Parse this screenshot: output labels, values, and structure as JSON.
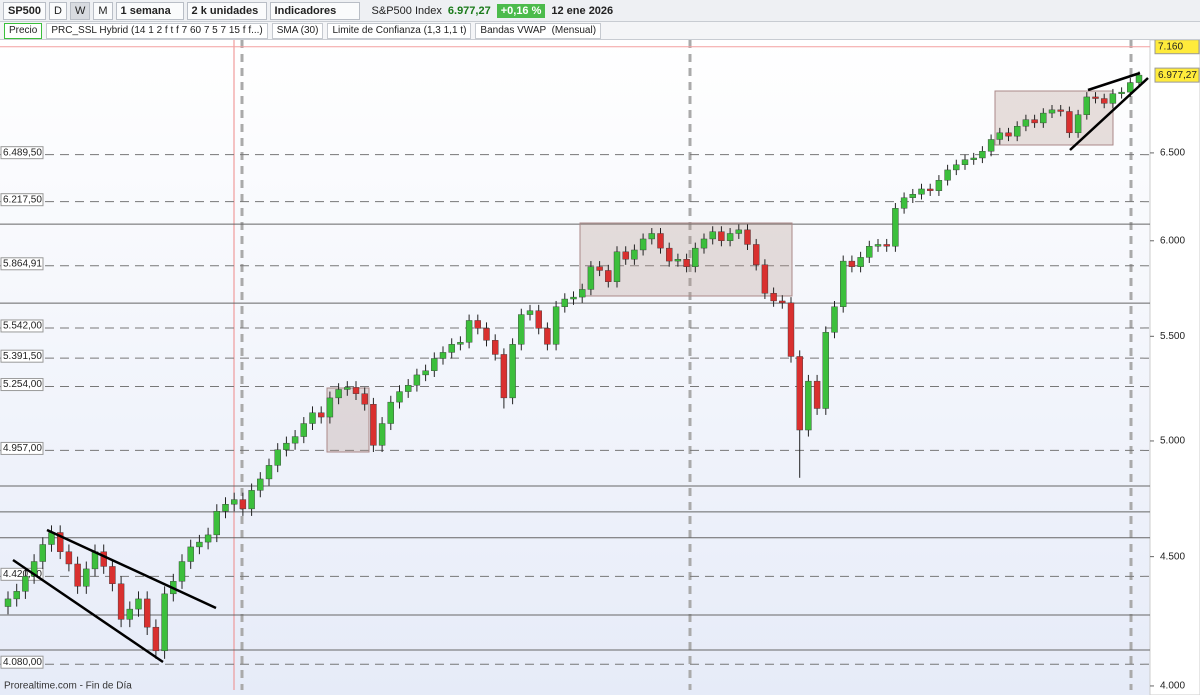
{
  "toolbar": {
    "symbol": "SP500",
    "periods": [
      "D",
      "W",
      "M"
    ],
    "timeframe": "1 semana",
    "units": "2 k unidades",
    "indicators": "Indicadores",
    "instrument": "S&P500 Index",
    "last": "6.977,27",
    "change": "+0,16 %",
    "date": "12 ene 2026"
  },
  "indicator_bar": [
    "Precio",
    "PRC_SSL Hybrid (14 1 2 f t f 7 60 7 5 7 15 f f...)",
    "SMA (30)",
    "Limite de Confianza (1,3 1,1 t)",
    "Bandas VWAP  (Mensual)"
  ],
  "chart_data": {
    "type": "candlestick",
    "log_scale": true,
    "up_color": "#3cbf3c",
    "down_color": "#d9302f",
    "ylim": [
      3978,
      7204
    ],
    "yticks": [
      {
        "value": 4000,
        "label": "4.000"
      },
      {
        "value": 4500,
        "label": "4.500"
      },
      {
        "value": 5000,
        "label": "5.000"
      },
      {
        "value": 5500,
        "label": "5.500"
      },
      {
        "value": 6000,
        "label": "6.000"
      },
      {
        "value": 6500,
        "label": "6.500"
      }
    ],
    "alert": {
      "value": 7160,
      "label": "7.160"
    },
    "last": {
      "value": 6977.27,
      "label": "6.977,27"
    },
    "levels": [
      {
        "value": 6489.5,
        "label": "6.489,50"
      },
      {
        "value": 6217.5,
        "label": "6.217,50"
      },
      {
        "value": 5864.91,
        "label": "5.864,91"
      },
      {
        "value": 5542,
        "label": "5.542,00"
      },
      {
        "value": 5391.5,
        "label": "5.391,50"
      },
      {
        "value": 5254,
        "label": "5.254,00"
      },
      {
        "value": 4957,
        "label": "4.957,00"
      },
      {
        "value": 4420,
        "label": "4.420,00"
      },
      {
        "value": 4080,
        "label": "4.080,00"
      }
    ],
    "lines": [
      6092,
      5669,
      4799,
      4687,
      4578,
      4267,
      4133
    ],
    "open": [
      4300,
      4330,
      4360,
      4420,
      4480,
      4550,
      4600,
      4520,
      4470,
      4380,
      4450,
      4520,
      4460,
      4390,
      4250,
      4290,
      4330,
      4220,
      4130,
      4350,
      4400,
      4480,
      4540,
      4560,
      4590,
      4690,
      4720,
      4740,
      4700,
      4780,
      4830,
      4890,
      4960,
      4990,
      5020,
      5080,
      5130,
      5110,
      5200,
      5240,
      5250,
      5220,
      5170,
      4980,
      5080,
      5180,
      5230,
      5260,
      5310,
      5330,
      5390,
      5420,
      5460,
      5470,
      5580,
      5540,
      5480,
      5410,
      5200,
      5460,
      5610,
      5630,
      5540,
      5460,
      5650,
      5690,
      5700,
      5740,
      5860,
      5840,
      5780,
      5940,
      5900,
      5950,
      6010,
      6040,
      5960,
      5890,
      5900,
      5860,
      5960,
      6010,
      6050,
      6000,
      6040,
      6060,
      5980,
      5870,
      5720,
      5680,
      5670,
      5400,
      5050,
      5280,
      5150,
      5520,
      5650,
      5890,
      5860,
      5910,
      5970,
      5980,
      5970,
      6180,
      6240,
      6260,
      6290,
      6280,
      6340,
      6400,
      6430,
      6460,
      6470,
      6510,
      6580,
      6620,
      6600,
      6660,
      6700,
      6680,
      6740,
      6760,
      6750,
      6620,
      6730,
      6840,
      6830,
      6800,
      6860,
      6870,
      6930
    ],
    "high": [
      4360,
      4390,
      4450,
      4510,
      4580,
      4630,
      4630,
      4550,
      4500,
      4480,
      4550,
      4550,
      4490,
      4420,
      4320,
      4360,
      4360,
      4250,
      4380,
      4430,
      4510,
      4570,
      4590,
      4620,
      4720,
      4750,
      4770,
      4770,
      4810,
      4860,
      4920,
      4990,
      5020,
      5050,
      5110,
      5160,
      5160,
      5230,
      5270,
      5280,
      5280,
      5250,
      5200,
      5110,
      5210,
      5260,
      5290,
      5340,
      5360,
      5420,
      5450,
      5490,
      5500,
      5610,
      5610,
      5570,
      5510,
      5440,
      5490,
      5640,
      5660,
      5660,
      5570,
      5680,
      5720,
      5730,
      5770,
      5890,
      5890,
      5870,
      5970,
      5970,
      5980,
      6040,
      6070,
      6070,
      5990,
      5930,
      5930,
      5990,
      6040,
      6080,
      6080,
      6070,
      6090,
      6090,
      6010,
      5900,
      5750,
      5710,
      5700,
      5430,
      5310,
      5310,
      5550,
      5680,
      5920,
      5920,
      5940,
      6000,
      6010,
      6010,
      6210,
      6270,
      6290,
      6320,
      6320,
      6370,
      6430,
      6460,
      6490,
      6500,
      6540,
      6610,
      6650,
      6650,
      6690,
      6730,
      6730,
      6770,
      6790,
      6790,
      6780,
      6760,
      6870,
      6870,
      6860,
      6890,
      6900,
      6960,
      7000
    ],
    "low": [
      4270,
      4300,
      4330,
      4390,
      4450,
      4520,
      4490,
      4440,
      4350,
      4350,
      4420,
      4430,
      4360,
      4220,
      4220,
      4260,
      4190,
      4100,
      4100,
      4320,
      4370,
      4450,
      4510,
      4530,
      4560,
      4660,
      4690,
      4670,
      4670,
      4750,
      4800,
      4860,
      4930,
      4960,
      4990,
      5050,
      5080,
      5080,
      5170,
      5210,
      5190,
      5140,
      4950,
      4950,
      5050,
      5150,
      5200,
      5230,
      5280,
      5300,
      5360,
      5390,
      5430,
      5440,
      5510,
      5450,
      5380,
      5150,
      5170,
      5430,
      5580,
      5510,
      5430,
      5430,
      5620,
      5660,
      5670,
      5710,
      5810,
      5750,
      5750,
      5870,
      5870,
      5920,
      5980,
      5930,
      5860,
      5860,
      5830,
      5830,
      5930,
      5980,
      5970,
      5970,
      6010,
      5950,
      5840,
      5690,
      5650,
      5640,
      5370,
      4835,
      5020,
      5120,
      5120,
      5490,
      5620,
      5830,
      5830,
      5880,
      5940,
      5940,
      5940,
      6150,
      6210,
      6230,
      6250,
      6250,
      6310,
      6370,
      6400,
      6430,
      6440,
      6480,
      6550,
      6570,
      6570,
      6630,
      6650,
      6650,
      6710,
      6720,
      6590,
      6590,
      6700,
      6800,
      6770,
      6770,
      6830,
      6840,
      6900
    ],
    "close": [
      4330,
      4360,
      4420,
      4480,
      4550,
      4600,
      4520,
      4470,
      4380,
      4450,
      4520,
      4460,
      4390,
      4250,
      4290,
      4330,
      4220,
      4130,
      4350,
      4400,
      4480,
      4540,
      4560,
      4590,
      4690,
      4720,
      4740,
      4700,
      4780,
      4830,
      4890,
      4960,
      4990,
      5020,
      5080,
      5130,
      5110,
      5200,
      5240,
      5250,
      5220,
      5170,
      4980,
      5080,
      5180,
      5230,
      5260,
      5310,
      5330,
      5390,
      5420,
      5460,
      5470,
      5580,
      5540,
      5480,
      5410,
      5200,
      5460,
      5610,
      5630,
      5540,
      5460,
      5650,
      5690,
      5700,
      5740,
      5860,
      5840,
      5780,
      5940,
      5900,
      5950,
      6010,
      6040,
      5960,
      5890,
      5900,
      5860,
      5960,
      6010,
      6050,
      6000,
      6040,
      6060,
      5980,
      5870,
      5720,
      5680,
      5670,
      5400,
      5050,
      5280,
      5150,
      5520,
      5650,
      5890,
      5860,
      5910,
      5970,
      5980,
      5970,
      6180,
      6240,
      6260,
      6290,
      6280,
      6340,
      6400,
      6430,
      6460,
      6470,
      6510,
      6580,
      6620,
      6600,
      6660,
      6700,
      6680,
      6740,
      6760,
      6750,
      6620,
      6730,
      6840,
      6830,
      6800,
      6860,
      6870,
      6930,
      6977.27
    ],
    "footer": "Prorealtime.com - Fin de Día"
  }
}
